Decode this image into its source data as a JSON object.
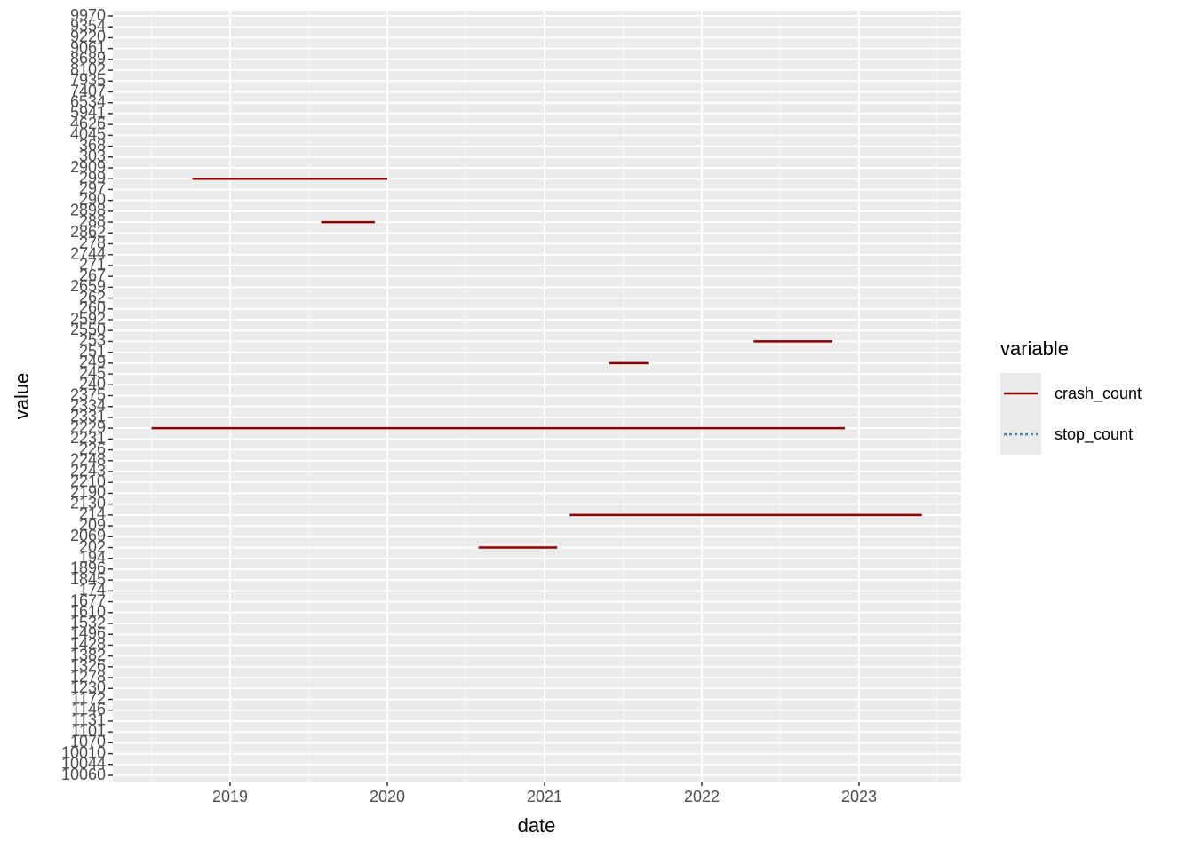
{
  "chart_data": {
    "type": "line",
    "x_label": "date",
    "y_label": "value",
    "xlim": [
      2018.254,
      2023.65
    ],
    "xticks": [
      2019,
      2020,
      2021,
      2022,
      2023
    ],
    "categories": [
      "10060",
      "10044",
      "10010",
      "1070",
      "1101",
      "1131",
      "1146",
      "1172",
      "1230",
      "1278",
      "1326",
      "1382",
      "1428",
      "1496",
      "1532",
      "1610",
      "1677",
      "174",
      "1845",
      "1896",
      "194",
      "202",
      "2069",
      "209",
      "214",
      "2130",
      "2190",
      "2210",
      "2243",
      "2248",
      "226",
      "2231",
      "2229",
      "2331",
      "2334",
      "2375",
      "240",
      "245",
      "249",
      "251",
      "253",
      "2550",
      "2592",
      "260",
      "262",
      "2659",
      "267",
      "271",
      "2744",
      "278",
      "2862",
      "288",
      "2898",
      "290",
      "297",
      "299",
      "2909",
      "303",
      "368",
      "4045",
      "4626",
      "5941",
      "6534",
      "7407",
      "7935",
      "8102",
      "8689",
      "9061",
      "9220",
      "9354",
      "9970"
    ],
    "grid": true,
    "legend_title": "variable",
    "series": [
      {
        "name": "crash_count",
        "color": "#8b0000",
        "dash": "solid",
        "x": [
          2018.76,
          2020.0,
          null,
          2019.58,
          2019.92,
          null,
          2022.33,
          2022.83,
          null,
          2021.41,
          2021.66,
          null,
          2018.5,
          2022.91,
          null,
          2021.16,
          2023.4,
          null,
          2020.58,
          2021.08
        ],
        "values": [
          "299",
          "299",
          null,
          "288",
          "288",
          null,
          "253",
          "253",
          null,
          "249",
          "249",
          null,
          "2229",
          "2229",
          null,
          "214",
          "214",
          null,
          "202",
          "202"
        ]
      },
      {
        "name": "stop_count",
        "color": "#4682b4",
        "dash": "dotted",
        "x": [],
        "values": []
      }
    ]
  }
}
